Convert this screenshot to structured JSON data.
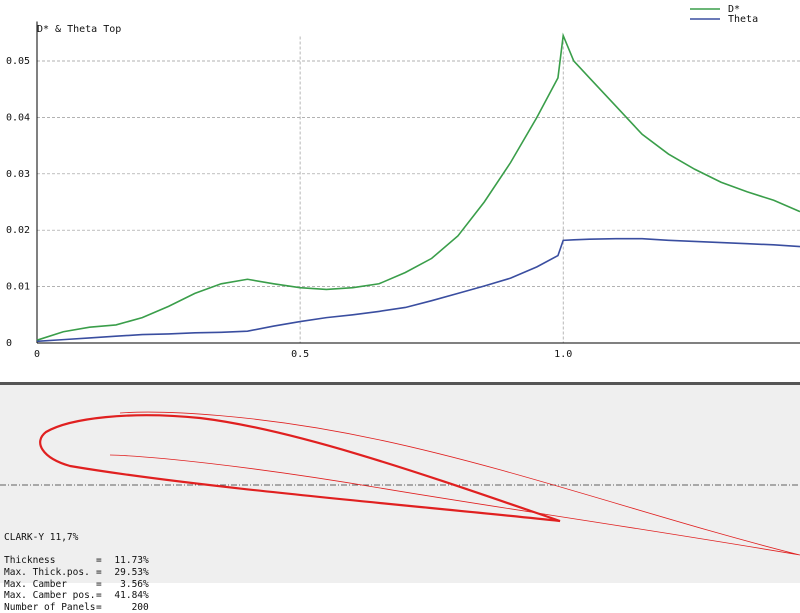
{
  "chart_data": {
    "type": "line",
    "title": "D* & Theta Top",
    "x": [
      0,
      0.05,
      0.1,
      0.15,
      0.2,
      0.25,
      0.3,
      0.35,
      0.4,
      0.45,
      0.5,
      0.55,
      0.6,
      0.65,
      0.7,
      0.75,
      0.8,
      0.85,
      0.9,
      0.95,
      0.99,
      1.0,
      1.02,
      1.05,
      1.1,
      1.15,
      1.2,
      1.25,
      1.3,
      1.35,
      1.4,
      1.45
    ],
    "series": [
      {
        "name": "D*",
        "color": "#3a9e4a",
        "values": [
          0.0005,
          0.002,
          0.0028,
          0.0032,
          0.0045,
          0.0065,
          0.0088,
          0.0105,
          0.0113,
          0.0105,
          0.0098,
          0.0095,
          0.0098,
          0.0105,
          0.0125,
          0.015,
          0.019,
          0.025,
          0.032,
          0.04,
          0.047,
          0.0545,
          0.05,
          0.047,
          0.042,
          0.037,
          0.0335,
          0.0308,
          0.0285,
          0.0268,
          0.0253,
          0.0233
        ]
      },
      {
        "name": "Theta",
        "color": "#3a4ea0",
        "values": [
          0.0003,
          0.0006,
          0.0009,
          0.0012,
          0.0015,
          0.0016,
          0.0018,
          0.0019,
          0.0021,
          0.003,
          0.0038,
          0.0045,
          0.005,
          0.0056,
          0.0063,
          0.0075,
          0.0088,
          0.0101,
          0.0115,
          0.0135,
          0.0155,
          0.0182,
          0.0183,
          0.0184,
          0.0185,
          0.0185,
          0.0182,
          0.018,
          0.0178,
          0.0176,
          0.0174,
          0.0171
        ]
      }
    ],
    "xlim": [
      0,
      1.45
    ],
    "ylim": [
      0,
      0.057
    ],
    "xticks": [
      0,
      0.5,
      {
        "value": 1,
        "label": "1.0"
      }
    ],
    "yticks": [
      0,
      0.01,
      0.02,
      0.03,
      0.04,
      0.05
    ],
    "grid": true,
    "legend": "top-right"
  },
  "airfoil": {
    "name": "CLARK-Y 11,7%",
    "separator": "=",
    "properties": [
      {
        "label": "Thickness",
        "value": "11.73%"
      },
      {
        "label": "Max. Thick.pos.",
        "value": "29.53%"
      },
      {
        "label": "Max. Camber",
        "value": "3.56%"
      },
      {
        "label": "Max. Camber pos.",
        "value": "41.84%"
      },
      {
        "label": "Number of Panels",
        "value": "200"
      }
    ]
  }
}
